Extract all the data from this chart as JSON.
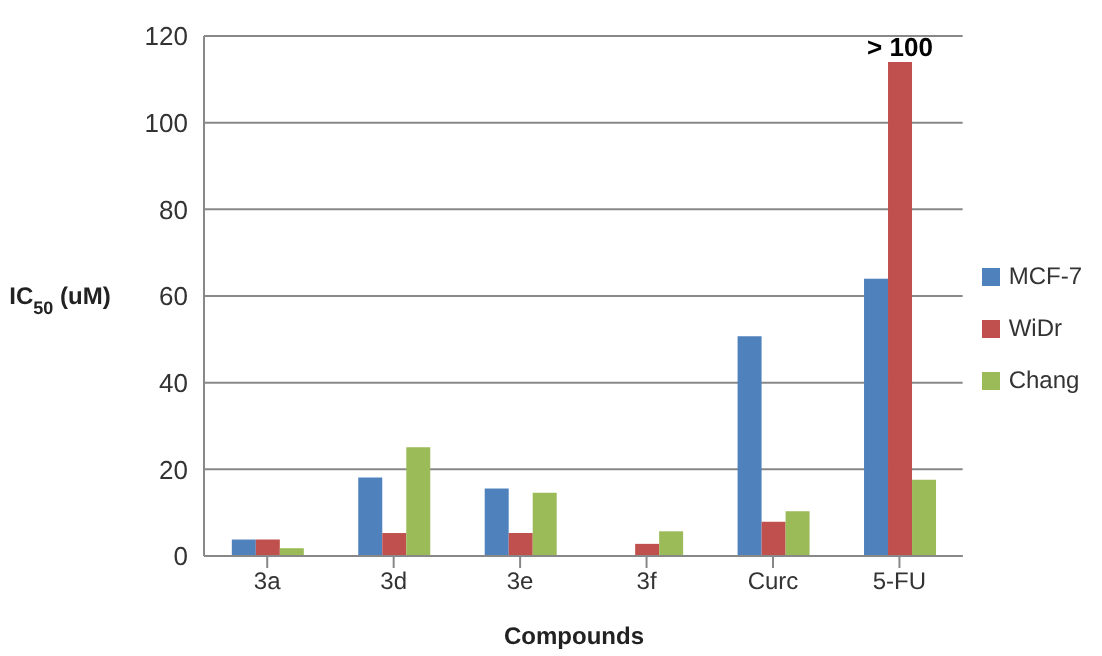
{
  "chart_data": {
    "type": "bar",
    "xlabel": "Compounds",
    "ylabel": "IC$_{50}$ (uM)",
    "categories": [
      "3a",
      "3d",
      "3e",
      "3f",
      "Curc",
      "5-FU"
    ],
    "series": [
      {
        "name": "MCF-7",
        "color": "#4f81bd",
        "values": [
          3.8,
          18.1,
          15.6,
          0,
          50.7,
          64
        ]
      },
      {
        "name": "WiDr",
        "color": "#c0504d",
        "values": [
          3.8,
          5.3,
          5.3,
          2.8,
          7.9,
          114
        ],
        "value_labels": [
          null,
          null,
          null,
          null,
          null,
          "> 100"
        ]
      },
      {
        "name": "Chang",
        "color": "#9bbb59",
        "values": [
          1.8,
          25.1,
          14.6,
          5.7,
          10.3,
          17.6
        ]
      }
    ],
    "ylim": [
      0,
      120
    ],
    "yticks": [
      0,
      20,
      40,
      60,
      80,
      100,
      120
    ],
    "grid": "y",
    "legend": "right"
  }
}
